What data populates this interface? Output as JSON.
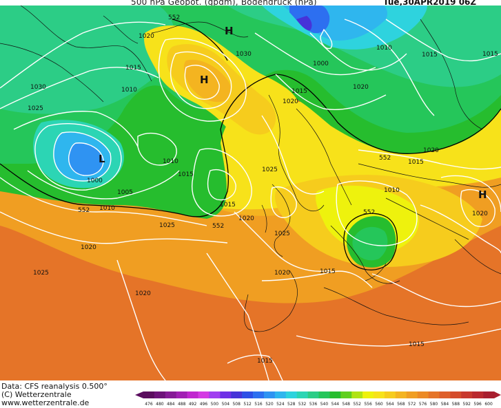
{
  "header": {
    "title": "500 hPa Geopot. (gpdm), Bodendruck (hPa)",
    "valid_time": "Tue,30APR2019 06Z"
  },
  "footer": {
    "source": "Data: CFS reanalysis 0.500°",
    "copyright": "(C) Wetterzentrale",
    "website": "www.wetterzentrale.de"
  },
  "pressure_centers": [
    {
      "type": "L",
      "label": "L"
    },
    {
      "type": "H",
      "label": "H"
    },
    {
      "type": "H",
      "label": "H"
    },
    {
      "type": "H",
      "label": "H"
    }
  ],
  "isobar_labels": [
    "1020",
    "1015",
    "1010",
    "1030",
    "1025",
    "1000",
    "1005",
    "1010",
    "1015",
    "1020",
    "1025",
    "1030",
    "1010",
    "1000",
    "1015",
    "1005",
    "1020",
    "1015",
    "1020",
    "1025",
    "1015",
    "1020",
    "1010",
    "1015",
    "1020",
    "1025",
    "1020",
    "1025",
    "1015",
    "1015",
    "1020",
    "1015",
    "1020",
    "1010",
    "1015",
    "1015"
  ],
  "geopotential_labels": [
    "552",
    "552",
    "552",
    "552",
    "552",
    "552"
  ],
  "legend": {
    "ticks": [
      "476",
      "480",
      "484",
      "488",
      "492",
      "496",
      "500",
      "504",
      "508",
      "512",
      "516",
      "520",
      "524",
      "528",
      "532",
      "536",
      "540",
      "544",
      "548",
      "552",
      "556",
      "560",
      "564",
      "568",
      "572",
      "576",
      "580",
      "584",
      "588",
      "592",
      "596",
      "600"
    ],
    "colors": [
      "#5a0d5e",
      "#6d1279",
      "#861a96",
      "#a11fb3",
      "#c026cf",
      "#d43ae3",
      "#a03ef0",
      "#6e2fe6",
      "#4633d8",
      "#2e4fe6",
      "#2d6ff0",
      "#2f93f2",
      "#2fb6ee",
      "#2ed3de",
      "#2cd5b4",
      "#2ccd86",
      "#25c65a",
      "#26bd2e",
      "#60cf1e",
      "#b0e314",
      "#eef20d",
      "#f7e21a",
      "#f6cc1d",
      "#f4b420",
      "#f09e22",
      "#ec8a25",
      "#e57428",
      "#de5f2a",
      "#d44c2c",
      "#c8392e",
      "#ba2a2f",
      "#a81f2f"
    ]
  }
}
